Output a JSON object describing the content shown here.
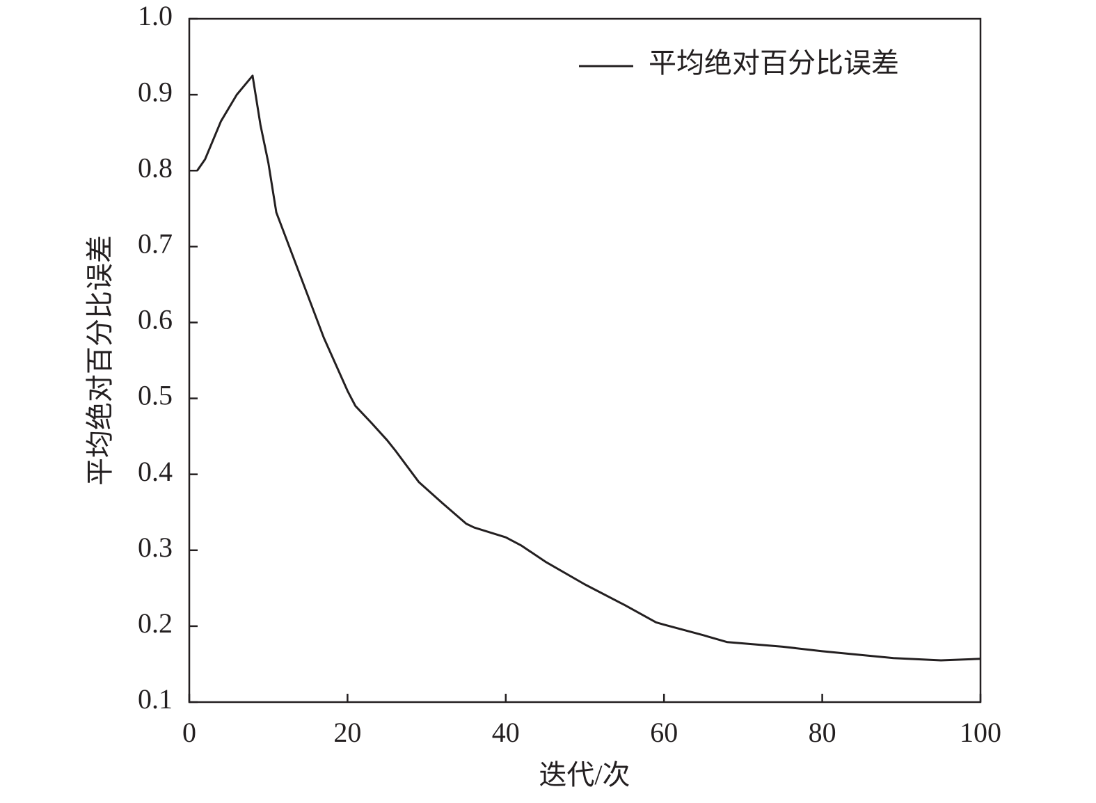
{
  "chart_data": {
    "type": "line",
    "x_label": "迭代/次",
    "y_label": "平均绝对百分比误差",
    "x": [
      1,
      2,
      4,
      6,
      8,
      9,
      10,
      11,
      13,
      15,
      17,
      20,
      21,
      23,
      25,
      26,
      29,
      32,
      35,
      36,
      40,
      42,
      45,
      50,
      55,
      59,
      60,
      65,
      68,
      75,
      80,
      85,
      89,
      95,
      100
    ],
    "series": [
      {
        "name": "平均绝对百分比误差",
        "color": "#231f20",
        "values": [
          0.8,
          0.815,
          0.865,
          0.9,
          0.925,
          0.86,
          0.81,
          0.745,
          0.69,
          0.635,
          0.58,
          0.51,
          0.49,
          0.468,
          0.445,
          0.432,
          0.39,
          0.362,
          0.335,
          0.33,
          0.317,
          0.306,
          0.285,
          0.255,
          0.228,
          0.205,
          0.202,
          0.188,
          0.179,
          0.173,
          0.167,
          0.162,
          0.158,
          0.155,
          0.157
        ]
      }
    ],
    "xlim": [
      0,
      100
    ],
    "xticks": [
      0,
      20,
      40,
      60,
      80,
      100
    ],
    "ylim": [
      0.1,
      1
    ],
    "yticks": [
      0.1,
      0.2,
      0.3,
      0.4,
      0.5,
      0.6,
      0.7,
      0.8,
      0.9,
      {
        "value": 1,
        "label": "1.0"
      }
    ],
    "legend": "upper right"
  }
}
